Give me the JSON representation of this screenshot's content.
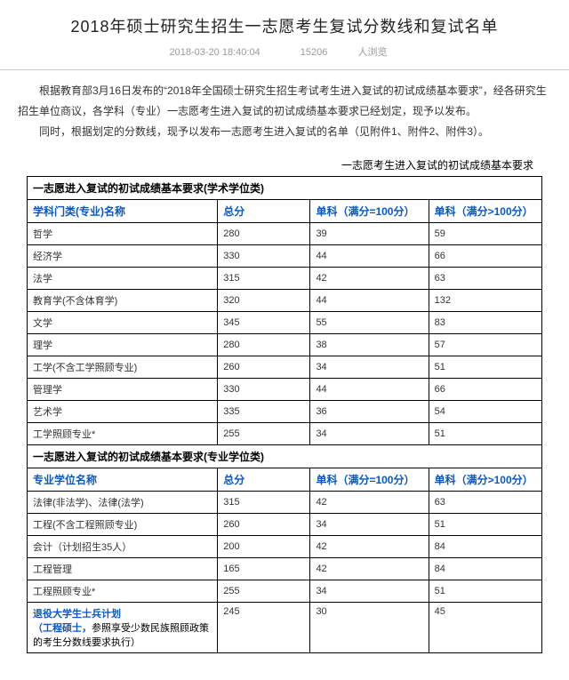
{
  "header": {
    "title": "2018年硕士研究生招生一志愿考生复试分数线和复试名单",
    "date": "2018-03-20 18:40:04",
    "views": "15206",
    "views_label": "人浏览"
  },
  "body": {
    "p1": "根据教育部3月16日发布的“2018年全国硕士研究生招生考试考生进入复试的初试成绩基本要求”，经各研究生招生单位商议，各学科（专业）一志愿考生进入复试的初试成绩基本要求已经划定，现予以发布。",
    "p2": "同时，根据划定的分数线，现予以发布一志愿考生进入复试的名单（见附件1、附件2、附件3）。",
    "subhead": "一志愿考生进入复试的初试成绩基本要求"
  },
  "table1": {
    "section": "一志愿进入复试的初试成绩基本要求(学术学位类)",
    "headers": [
      "学科门类(专业)名称",
      "总分",
      "单科（满分=100分）",
      "单科（满分>100分）"
    ],
    "rows": [
      [
        "哲学",
        "280",
        "39",
        "59"
      ],
      [
        "经济学",
        "330",
        "44",
        "66"
      ],
      [
        "法学",
        "315",
        "42",
        "63"
      ],
      [
        "教育学(不含体育学)",
        "320",
        "44",
        "132"
      ],
      [
        "文学",
        "345",
        "55",
        "83"
      ],
      [
        "理学",
        "280",
        "38",
        "57"
      ],
      [
        "工学(不含工学照顾专业)",
        "260",
        "34",
        "51"
      ],
      [
        "管理学",
        "330",
        "44",
        "66"
      ],
      [
        "艺术学",
        "335",
        "36",
        "54"
      ],
      [
        "工学照顾专业*",
        "255",
        "34",
        "51"
      ]
    ]
  },
  "table2": {
    "section": "一志愿进入复试的初试成绩基本要求(专业学位类)",
    "headers": [
      "专业学位名称",
      "总分",
      "单科（满分=100分）",
      "单科（满分>100分）"
    ],
    "rows": [
      [
        "法律(非法学)、法律(法学)",
        "315",
        "42",
        "63"
      ],
      [
        "工程(不含工程照顾专业)",
        "260",
        "34",
        "51"
      ],
      [
        "会计（计划招生35人）",
        "200",
        "42",
        "84"
      ],
      [
        "工程管理",
        "165",
        "42",
        "84"
      ],
      [
        "工程照顾专业*",
        "255",
        "34",
        "51"
      ]
    ],
    "lastrow": {
      "title": "退役大学生士兵计划",
      "note_blue": "（工程硕士，",
      "note_black": "参照享受少数民族照顾政策的考生分数线要求执行）",
      "cells": [
        "245",
        "30",
        "45"
      ]
    }
  }
}
